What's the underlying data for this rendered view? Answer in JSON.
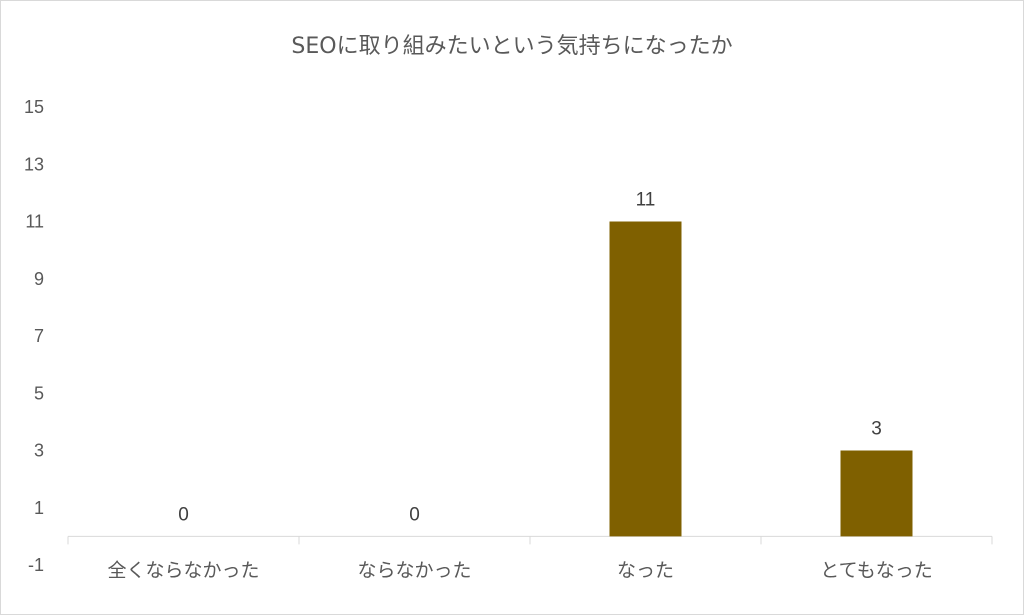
{
  "chart_data": {
    "type": "bar",
    "title": "SEOに取り組みたいという気持ちになったか",
    "categories": [
      "全くならなかった",
      "ならなかった",
      "なった",
      "とてもなった"
    ],
    "values": [
      0,
      0,
      11,
      3
    ],
    "data_labels": [
      "0",
      "0",
      "11",
      "3"
    ],
    "ylim": [
      -1,
      15
    ],
    "yticks": [
      15,
      13,
      11,
      9,
      7,
      5,
      3,
      1,
      -1
    ],
    "ytick_labels": [
      "15",
      "13",
      "11",
      "9",
      "7",
      "5",
      "3",
      "1",
      "-1"
    ],
    "xlabel": "",
    "ylabel": "",
    "grid": false,
    "legend": "none",
    "colors": {
      "bar": "#7f6000",
      "axis": "#d9d9d9",
      "text": "#595959"
    }
  }
}
